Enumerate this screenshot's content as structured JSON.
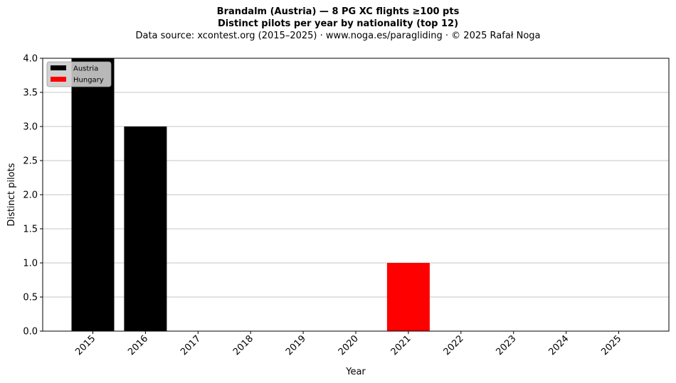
{
  "header": {
    "title_line1": "Brandalm (Austria)  —  8 PG XC flights ≥100 pts",
    "title_line2": "Distinct pilots per year by nationality (top 12)",
    "subtitle": "Data source: xcontest.org (2015–2025)  ·  www.noga.es/paragliding  ·  © 2025 Rafał Noga"
  },
  "chart_data": {
    "type": "bar",
    "stacked": true,
    "categories": [
      "2015",
      "2016",
      "2017",
      "2018",
      "2019",
      "2020",
      "2021",
      "2022",
      "2023",
      "2024",
      "2025"
    ],
    "series": [
      {
        "name": "Austria",
        "color": "#000000",
        "values": [
          4,
          3,
          0,
          0,
          0,
          0,
          0,
          0,
          0,
          0,
          0
        ]
      },
      {
        "name": "Hungary",
        "color": "#ff0000",
        "values": [
          0,
          0,
          0,
          0,
          0,
          0,
          1,
          0,
          0,
          0,
          0
        ]
      }
    ],
    "xlabel": "Year",
    "ylabel": "Distinct pilots",
    "ylim": [
      0,
      4
    ],
    "yticks": [
      "0.0",
      "0.5",
      "1.0",
      "1.5",
      "2.0",
      "2.5",
      "3.0",
      "3.5",
      "4.0"
    ],
    "grid": "y",
    "legend_position": "top-left"
  }
}
